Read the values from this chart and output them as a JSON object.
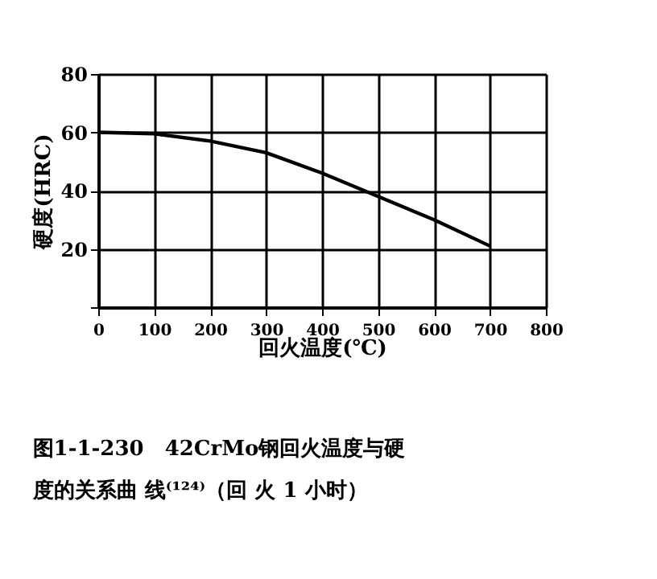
{
  "chart_data": {
    "type": "line",
    "xlabel": "回火温度(℃)",
    "ylabel": "硬度(HRC)",
    "x": [
      0,
      100,
      200,
      300,
      400,
      500,
      600,
      700
    ],
    "series": [
      {
        "color": "#000000",
        "values": [
          60,
          59.5,
          57,
          53,
          46,
          38,
          30,
          21
        ]
      }
    ],
    "xlim": [
      0,
      800
    ],
    "xticks": [
      0,
      100,
      200,
      300,
      400,
      500,
      600,
      700,
      800
    ],
    "ylim": [
      0,
      80
    ],
    "yticks": [
      {
        "value": 0,
        "label": null
      },
      20,
      40,
      60,
      80
    ],
    "grid": true,
    "legend": false,
    "marker": "none",
    "line_style": "solid",
    "annotations": [
      "图1-1-230　42CrMo钢回火温度与硬度的关系曲 线⁽¹²⁴⁾（回 火 1 小时）"
    ]
  }
}
